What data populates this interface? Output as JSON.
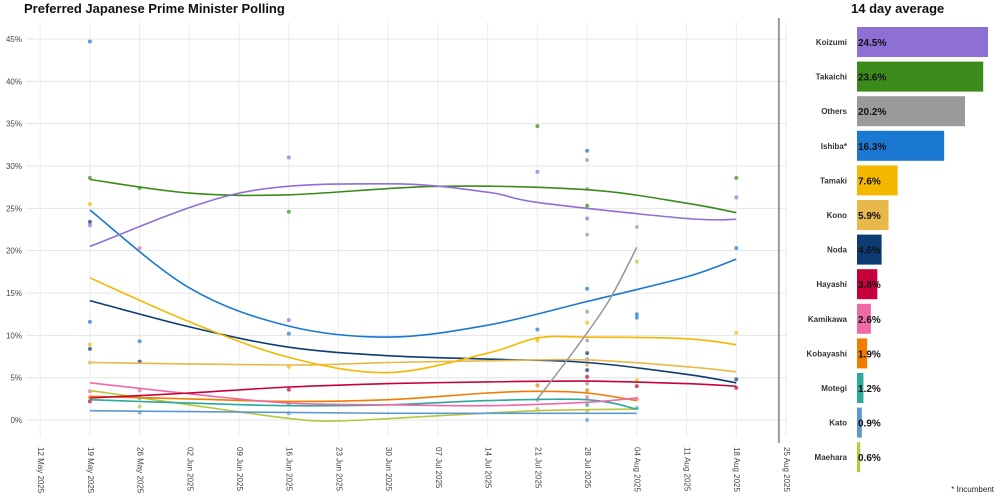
{
  "title": "Preferred Japanese Prime Minister Polling",
  "bar_title": "14 day average",
  "note": "* Incumbent",
  "chart_data": [
    {
      "type": "line",
      "title": "Preferred Japanese Prime Minister Polling",
      "xlabel": "",
      "ylabel": "",
      "x_ticks": [
        "12 May 2025",
        "19 May 2025",
        "26 May 2025",
        "02 Jun 2025",
        "09 Jun 2025",
        "16 Jun 2025",
        "23 Jun 2025",
        "30 Jun 2025",
        "07 Jul 2025",
        "14 Jul 2025",
        "21 Jul 2025",
        "28 Jul 2025",
        "04 Aug 2025",
        "11 Aug 2025",
        "18 Aug 2025",
        "25 Aug 2025"
      ],
      "y_ticks": [
        "0%",
        "5%",
        "10%",
        "15%",
        "20%",
        "25%",
        "30%",
        "35%",
        "40%",
        "45%"
      ],
      "xlim_days": [
        -2,
        105
      ],
      "ylim": [
        -2,
        47
      ],
      "current_date_day": 104,
      "series": [
        {
          "name": "Koizumi",
          "color": "#8e6fd4",
          "x": [
            7,
            28,
            49,
            63,
            70,
            98,
            91
          ],
          "y": [
            20.5,
            26.8,
            27.9,
            26.9,
            25.7,
            23.7,
            23.8
          ]
        },
        {
          "name": "Takaichi",
          "color": "#3c8a1a",
          "x": [
            7,
            21,
            35,
            56,
            77,
            91,
            98
          ],
          "y": [
            28.4,
            26.8,
            26.6,
            27.6,
            27.2,
            25.6,
            24.5
          ]
        },
        {
          "name": "Others",
          "color": "#9a9a9a",
          "x": [
            70,
            75,
            80,
            84
          ],
          "y": [
            2.5,
            8.0,
            14.0,
            20.4
          ]
        },
        {
          "name": "Ishiba*",
          "color": "#1a78d0",
          "x": [
            7,
            21,
            35,
            49,
            63,
            77,
            91,
            98
          ],
          "y": [
            24.8,
            15.6,
            11.1,
            9.8,
            11.2,
            14.0,
            16.9,
            19.0
          ]
        },
        {
          "name": "Tamaki",
          "color": "#f5b800",
          "x": [
            7,
            21,
            35,
            49,
            63,
            70,
            77,
            91,
            98
          ],
          "y": [
            16.8,
            11.6,
            7.4,
            5.6,
            7.9,
            9.7,
            9.8,
            9.6,
            8.9
          ]
        },
        {
          "name": "Kono",
          "color": "#e8b84a",
          "x": [
            7,
            35,
            49,
            63,
            77,
            91,
            98
          ],
          "y": [
            6.8,
            6.5,
            6.8,
            7.0,
            7.1,
            6.3,
            5.7
          ]
        },
        {
          "name": "Noda",
          "color": "#0d3b73",
          "x": [
            7,
            21,
            35,
            49,
            63,
            77,
            91,
            98
          ],
          "y": [
            14.1,
            11.0,
            8.6,
            7.6,
            7.2,
            6.8,
            5.4,
            4.4
          ]
        },
        {
          "name": "Hayashi",
          "color": "#c8003c",
          "x": [
            7,
            21,
            35,
            49,
            63,
            77,
            91,
            98
          ],
          "y": [
            2.6,
            3.2,
            3.9,
            4.3,
            4.5,
            4.6,
            4.3,
            4.0
          ]
        },
        {
          "name": "Kamikawa",
          "color": "#ee6aa7",
          "x": [
            7,
            21,
            35,
            49,
            63,
            77,
            84
          ],
          "y": [
            4.4,
            3.1,
            2.0,
            1.8,
            1.7,
            2.1,
            2.6
          ]
        },
        {
          "name": "Kobayashi",
          "color": "#f07c00",
          "x": [
            7,
            21,
            35,
            49,
            63,
            70,
            77,
            84
          ],
          "y": [
            2.8,
            2.5,
            2.2,
            2.4,
            3.2,
            3.4,
            3.2,
            2.3
          ]
        },
        {
          "name": "Motegi",
          "color": "#2ca89c",
          "x": [
            7,
            21,
            35,
            49,
            63,
            77,
            84
          ],
          "y": [
            2.4,
            2.0,
            1.7,
            1.8,
            2.3,
            2.4,
            1.3
          ]
        },
        {
          "name": "Kato",
          "color": "#5e98d0",
          "x": [
            7,
            21,
            35,
            49,
            63,
            77,
            84
          ],
          "y": [
            1.1,
            1.0,
            0.9,
            0.8,
            0.8,
            0.8,
            0.8
          ]
        },
        {
          "name": "Maehara",
          "color": "#b5c93e",
          "x": [
            7,
            21,
            35,
            42,
            56,
            70,
            84
          ],
          "y": [
            3.5,
            1.8,
            0.2,
            -0.1,
            0.5,
            1.1,
            1.3
          ]
        }
      ],
      "points": [
        {
          "x": 7,
          "y": 44.7,
          "c": "#1a78d0"
        },
        {
          "x": 7,
          "y": 28.6,
          "c": "#3c8a1a"
        },
        {
          "x": 7,
          "y": 25.5,
          "c": "#f5b800"
        },
        {
          "x": 7,
          "y": 23.4,
          "c": "#0d3b73"
        },
        {
          "x": 7,
          "y": 23.0,
          "c": "#8e6fd4"
        },
        {
          "x": 7,
          "y": 11.6,
          "c": "#1a78d0"
        },
        {
          "x": 7,
          "y": 8.9,
          "c": "#f5b800"
        },
        {
          "x": 7,
          "y": 8.4,
          "c": "#0d3b73"
        },
        {
          "x": 7,
          "y": 6.8,
          "c": "#e8b84a"
        },
        {
          "x": 7,
          "y": 3.4,
          "c": "#ee6aa7"
        },
        {
          "x": 7,
          "y": 2.7,
          "c": "#f07c00"
        },
        {
          "x": 7,
          "y": 2.2,
          "c": "#c8003c"
        },
        {
          "x": 14,
          "y": 27.4,
          "c": "#3c8a1a"
        },
        {
          "x": 14,
          "y": 20.3,
          "c": "#ee6aa7"
        },
        {
          "x": 14,
          "y": 9.3,
          "c": "#1a78d0"
        },
        {
          "x": 14,
          "y": 6.9,
          "c": "#0d3b73"
        },
        {
          "x": 14,
          "y": 3.5,
          "c": "#ee6aa7"
        },
        {
          "x": 14,
          "y": 2.6,
          "c": "#2ca89c"
        },
        {
          "x": 14,
          "y": 1.6,
          "c": "#b5c93e"
        },
        {
          "x": 14,
          "y": 0.9,
          "c": "#5e98d0"
        },
        {
          "x": 35,
          "y": 31.0,
          "c": "#8e6fd4"
        },
        {
          "x": 35,
          "y": 24.6,
          "c": "#3c8a1a"
        },
        {
          "x": 35,
          "y": 11.8,
          "c": "#8e6fd4"
        },
        {
          "x": 35,
          "y": 10.2,
          "c": "#1a78d0"
        },
        {
          "x": 35,
          "y": 6.3,
          "c": "#f5b800"
        },
        {
          "x": 35,
          "y": 3.6,
          "c": "#c8003c"
        },
        {
          "x": 35,
          "y": 1.9,
          "c": "#2ca89c"
        },
        {
          "x": 35,
          "y": 0.8,
          "c": "#5e98d0"
        },
        {
          "x": 70,
          "y": 34.7,
          "c": "#3c8a1a"
        },
        {
          "x": 70,
          "y": 29.3,
          "c": "#8e6fd4"
        },
        {
          "x": 70,
          "y": 10.7,
          "c": "#1a78d0"
        },
        {
          "x": 70,
          "y": 9.4,
          "c": "#f5b800"
        },
        {
          "x": 70,
          "y": 4.1,
          "c": "#f07c00"
        },
        {
          "x": 70,
          "y": 2.4,
          "c": "#9a9a9a"
        },
        {
          "x": 70,
          "y": 1.3,
          "c": "#b5c93e"
        },
        {
          "x": 77,
          "y": 31.8,
          "c": "#1a78d0"
        },
        {
          "x": 77,
          "y": 30.7,
          "c": "#9a9a9a"
        },
        {
          "x": 77,
          "y": 27.3,
          "c": "#9a9a9a"
        },
        {
          "x": 77,
          "y": 25.3,
          "c": "#3c8a1a"
        },
        {
          "x": 77,
          "y": 23.8,
          "c": "#8e6fd4"
        },
        {
          "x": 77,
          "y": 21.9,
          "c": "#9a9a9a"
        },
        {
          "x": 77,
          "y": 15.5,
          "c": "#1a78d0"
        },
        {
          "x": 77,
          "y": 12.8,
          "c": "#9a9a9a"
        },
        {
          "x": 77,
          "y": 11.5,
          "c": "#f5b800"
        },
        {
          "x": 77,
          "y": 9.4,
          "c": "#9a9a9a"
        },
        {
          "x": 77,
          "y": 7.9,
          "c": "#0d3b73"
        },
        {
          "x": 77,
          "y": 7.2,
          "c": "#9a9a9a"
        },
        {
          "x": 77,
          "y": 6.5,
          "c": "#e8b84a"
        },
        {
          "x": 77,
          "y": 5.9,
          "c": "#0d3b73"
        },
        {
          "x": 77,
          "y": 5.1,
          "c": "#c8003c"
        },
        {
          "x": 77,
          "y": 4.3,
          "c": "#9a9a9a"
        },
        {
          "x": 77,
          "y": 3.5,
          "c": "#f07c00"
        },
        {
          "x": 77,
          "y": 2.7,
          "c": "#ee6aa7"
        },
        {
          "x": 77,
          "y": 1.8,
          "c": "#2ca89c"
        },
        {
          "x": 77,
          "y": 1.1,
          "c": "#b5c93e"
        },
        {
          "x": 77,
          "y": 0.0,
          "c": "#5e98d0"
        },
        {
          "x": 84,
          "y": 22.8,
          "c": "#9a9a9a"
        },
        {
          "x": 84,
          "y": 18.7,
          "c": "#b5c93e"
        },
        {
          "x": 84,
          "y": 12.5,
          "c": "#1a78d0"
        },
        {
          "x": 84,
          "y": 12.1,
          "c": "#1a78d0"
        },
        {
          "x": 84,
          "y": 4.7,
          "c": "#f5b800"
        },
        {
          "x": 84,
          "y": 4.0,
          "c": "#c8003c"
        },
        {
          "x": 84,
          "y": 2.5,
          "c": "#ee6aa7"
        },
        {
          "x": 84,
          "y": 1.4,
          "c": "#2ca89c"
        },
        {
          "x": 98,
          "y": 28.6,
          "c": "#3c8a1a"
        },
        {
          "x": 98,
          "y": 26.3,
          "c": "#8e6fd4"
        },
        {
          "x": 98,
          "y": 20.3,
          "c": "#1a78d0"
        },
        {
          "x": 98,
          "y": 10.3,
          "c": "#f5b800"
        },
        {
          "x": 98,
          "y": 4.8,
          "c": "#0d3b73"
        },
        {
          "x": 98,
          "y": 3.8,
          "c": "#c8003c"
        }
      ]
    },
    {
      "type": "bar",
      "orientation": "horizontal",
      "title": "14 day average",
      "categories": [
        "Koizumi",
        "Takaichi",
        "Others",
        "Ishiba*",
        "Tamaki",
        "Kono",
        "Noda",
        "Hayashi",
        "Kamikawa",
        "Kobayashi",
        "Motegi",
        "Kato",
        "Maehara"
      ],
      "values": [
        24.5,
        23.6,
        20.2,
        16.3,
        7.6,
        5.9,
        4.6,
        3.8,
        2.6,
        1.9,
        1.2,
        0.9,
        0.6
      ],
      "labels": [
        "24.5%",
        "23.6%",
        "20.2%",
        "16.3%",
        "7.6%",
        "5.9%",
        "4.6%",
        "3.8%",
        "2.6%",
        "1.9%",
        "1.2%",
        "0.9%",
        "0.6%"
      ],
      "colors": [
        "#8e6fd4",
        "#3c8a1a",
        "#9a9a9a",
        "#1a78d0",
        "#f5b800",
        "#e8b84a",
        "#0d3b73",
        "#c8003c",
        "#ee6aa7",
        "#f07c00",
        "#2ca89c",
        "#5e98d0",
        "#b5c93e"
      ],
      "xlim": [
        0,
        24.5
      ]
    }
  ]
}
